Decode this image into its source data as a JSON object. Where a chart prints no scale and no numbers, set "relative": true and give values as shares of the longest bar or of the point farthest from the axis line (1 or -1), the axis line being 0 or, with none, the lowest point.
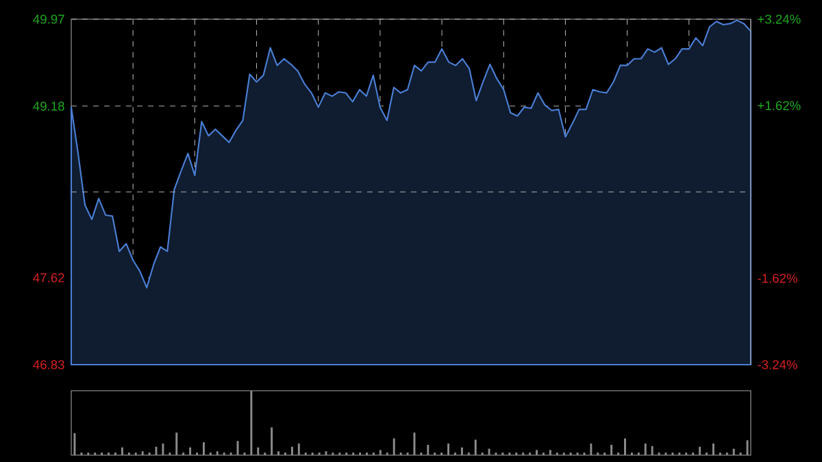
{
  "chart_data": [
    {
      "type": "area",
      "categories": [
        null,
        null,
        null,
        null,
        null,
        null,
        null,
        null,
        null,
        null,
        null,
        null,
        null,
        null,
        null,
        null,
        null,
        null,
        null,
        null,
        null,
        null,
        null,
        null,
        null,
        null,
        null,
        null,
        null,
        null,
        null,
        null,
        null,
        null,
        null,
        null,
        null,
        null,
        null,
        null,
        null,
        null,
        null,
        null,
        null,
        null,
        null,
        null,
        null,
        null,
        null,
        null,
        null,
        null,
        null,
        null,
        null,
        null,
        null,
        null,
        null,
        null,
        null,
        null,
        null,
        null,
        null,
        null,
        null,
        null,
        null,
        null,
        null,
        null,
        null,
        null,
        null,
        null,
        null,
        null,
        null,
        null,
        null,
        null,
        null,
        null,
        null,
        null,
        null,
        null,
        null,
        null,
        null,
        null,
        null,
        null,
        null,
        null,
        null,
        null
      ],
      "values": [
        49.17,
        48.75,
        48.28,
        48.15,
        48.34,
        48.19,
        48.18,
        47.86,
        47.93,
        47.78,
        47.68,
        47.53,
        47.74,
        47.9,
        47.86,
        48.42,
        48.59,
        48.75,
        48.55,
        49.04,
        48.91,
        48.97,
        48.91,
        48.85,
        48.96,
        49.05,
        49.47,
        49.4,
        49.46,
        49.71,
        49.55,
        49.61,
        49.56,
        49.5,
        49.38,
        49.3,
        49.17,
        49.3,
        49.27,
        49.31,
        49.3,
        49.22,
        49.33,
        49.27,
        49.46,
        49.17,
        49.05,
        49.35,
        49.3,
        49.33,
        49.55,
        49.5,
        49.58,
        49.58,
        49.7,
        49.58,
        49.55,
        49.61,
        49.52,
        49.23,
        49.4,
        49.56,
        49.43,
        49.33,
        49.12,
        49.09,
        49.17,
        49.16,
        49.3,
        49.19,
        49.14,
        49.15,
        48.9,
        49.02,
        49.15,
        49.15,
        49.33,
        49.31,
        49.3,
        49.4,
        49.55,
        49.55,
        49.61,
        49.61,
        49.7,
        49.67,
        49.71,
        49.56,
        49.61,
        49.7,
        49.7,
        49.8,
        49.73,
        49.9,
        49.95,
        49.92,
        49.93,
        49.96,
        49.93,
        49.86
      ],
      "color": "#4a7fd6",
      "ylim": [
        46.83,
        49.97
      ],
      "yticks": [
        46.83,
        47.62,
        49.18,
        49.97
      ],
      "y2lim": [
        -3.24,
        3.24
      ],
      "y2ticks": [
        {
          "value": -3.24,
          "label": "-3.24%"
        },
        {
          "value": -1.62,
          "label": "-1.62%"
        },
        {
          "value": 1.62,
          "label": "+1.62%"
        },
        {
          "value": 3.24,
          "label": "+3.24%"
        }
      ],
      "ref_lines": [
        {
          "axis": "y",
          "value": 48.4
        }
      ],
      "grid": true
    },
    {
      "type": "bar",
      "relative": true,
      "categories": [
        null,
        null,
        null,
        null,
        null,
        null,
        null,
        null,
        null,
        null,
        null,
        null,
        null,
        null,
        null,
        null,
        null,
        null,
        null,
        null,
        null,
        null,
        null,
        null,
        null,
        null,
        null,
        null,
        null,
        null,
        null,
        null,
        null,
        null,
        null,
        null,
        null,
        null,
        null,
        null,
        null,
        null,
        null,
        null,
        null,
        null,
        null,
        null,
        null,
        null,
        null,
        null,
        null,
        null,
        null,
        null,
        null,
        null,
        null,
        null,
        null,
        null,
        null,
        null,
        null,
        null,
        null,
        null,
        null,
        null,
        null,
        null,
        null,
        null,
        null,
        null,
        null,
        null,
        null,
        null,
        null,
        null,
        null,
        null,
        null,
        null,
        null,
        null,
        null,
        null,
        null,
        null,
        null,
        null,
        null,
        null,
        null,
        null,
        null,
        null
      ],
      "values": [
        0.34,
        0.04,
        0.04,
        0.04,
        0.04,
        0.04,
        0.04,
        0.12,
        0.04,
        0.04,
        0.06,
        0.04,
        0.13,
        0.18,
        0.04,
        0.35,
        0.04,
        0.12,
        0.04,
        0.2,
        0.04,
        0.06,
        0.04,
        0.04,
        0.22,
        0.04,
        1.0,
        0.12,
        0.04,
        0.43,
        0.06,
        0.04,
        0.13,
        0.18,
        0.04,
        0.04,
        0.04,
        0.06,
        0.04,
        0.04,
        0.04,
        0.04,
        0.04,
        0.04,
        0.04,
        0.08,
        0.04,
        0.26,
        0.04,
        0.04,
        0.35,
        0.04,
        0.16,
        0.04,
        0.04,
        0.18,
        0.04,
        0.12,
        0.04,
        0.24,
        0.04,
        0.1,
        0.04,
        0.04,
        0.04,
        0.04,
        0.04,
        0.04,
        0.08,
        0.04,
        0.08,
        0.04,
        0.04,
        0.04,
        0.04,
        0.04,
        0.18,
        0.04,
        0.04,
        0.16,
        0.04,
        0.26,
        0.04,
        0.04,
        0.18,
        0.14,
        0.04,
        0.04,
        0.04,
        0.04,
        0.04,
        0.04,
        0.13,
        0.04,
        0.18,
        0.04,
        0.04,
        0.1,
        0.04,
        0.23
      ],
      "color": "#8c8c8c"
    }
  ]
}
